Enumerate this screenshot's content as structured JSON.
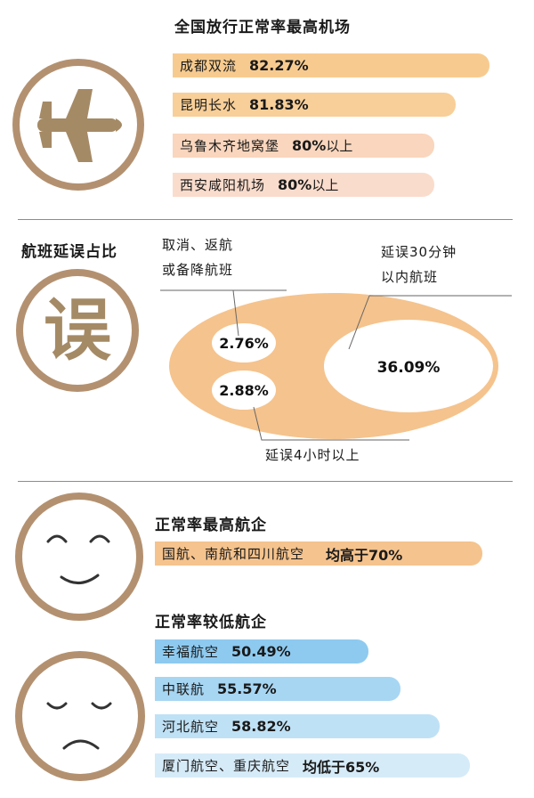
{
  "section1": {
    "title": "全国放行正常率最高机场",
    "icon": "airplane-icon",
    "bars": [
      {
        "name": "成都双流",
        "value": "82.27%",
        "suffix": "",
        "color": "#f7cb8f"
      },
      {
        "name": "昆明长水",
        "value": "81.83%",
        "suffix": "",
        "color": "#f8cf98"
      },
      {
        "name": "乌鲁木齐地窝堡",
        "value": "80%",
        "suffix": "以上",
        "color": "#f9d6bd"
      },
      {
        "name": "西安咸阳机场",
        "value": "80%",
        "suffix": "以上",
        "color": "#fadccc"
      }
    ]
  },
  "section2": {
    "title": "航班延误占比",
    "icon": "delay-character-icon",
    "icon_char": "误",
    "ellipse_color": "#f5c38d",
    "labels": {
      "cancel_line1": "取消、返航",
      "cancel_line2": "或备降航班",
      "delay30_line1": "延误30分钟",
      "delay30_line2": "以内航班",
      "delay4h": "延误4小时以上"
    }
  },
  "section3": {
    "high_title": "正常率最高航企",
    "high_bar": {
      "name": "国航、南航和四川航空",
      "value": "均高于70%",
      "color": "#f5c38d"
    },
    "low_title": "正常率较低航企",
    "low_bars": [
      {
        "name": "幸福航空",
        "value": "50.49%",
        "color": "#8ecaf0"
      },
      {
        "name": "中联航",
        "value": "55.57%",
        "color": "#a7d6f3"
      },
      {
        "name": "河北航空",
        "value": "58.82%",
        "color": "#bfe1f6"
      },
      {
        "name": "厦门航空、重庆航空",
        "value": "均低于65%",
        "color": "#d6ebf8"
      }
    ],
    "happy_icon": "smiling-face-icon",
    "sad_icon": "sad-face-icon"
  },
  "chart_data": [
    {
      "type": "bar",
      "title": "全国放行正常率最高机场",
      "categories": [
        "成都双流",
        "昆明长水",
        "乌鲁木齐地窝堡",
        "西安咸阳机场"
      ],
      "values": [
        82.27,
        81.83,
        80,
        80
      ],
      "unit": "%"
    },
    {
      "type": "pie",
      "title": "航班延误占比",
      "categories": [
        "延误30分钟以内航班",
        "取消、返航或备降航班",
        "延误4小时以上"
      ],
      "values": [
        36.09,
        2.76,
        2.88
      ],
      "unit": "%"
    },
    {
      "type": "bar",
      "title": "正常率较低航企",
      "categories": [
        "幸福航空",
        "中联航",
        "河北航空"
      ],
      "values": [
        50.49,
        55.57,
        58.82
      ],
      "unit": "%"
    }
  ]
}
